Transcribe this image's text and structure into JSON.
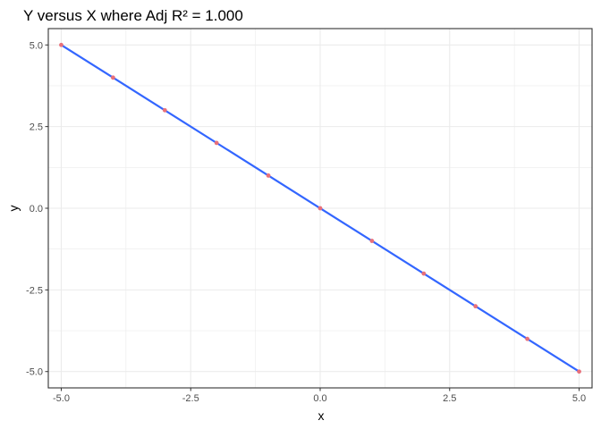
{
  "chart_data": {
    "type": "scatter",
    "title": "Y versus X where Adj R² = 1.000",
    "xlabel": "x",
    "ylabel": "y",
    "xlim": [
      -5.25,
      5.25
    ],
    "ylim": [
      -5.5,
      5.5
    ],
    "x_ticks": [
      -5.0,
      -2.5,
      0.0,
      2.5,
      5.0
    ],
    "x_tick_labels": [
      "-5.0",
      "-2.5",
      "0.0",
      "2.5",
      "5.0"
    ],
    "y_ticks": [
      -5.0,
      -2.5,
      0.0,
      2.5,
      5.0
    ],
    "y_tick_labels": [
      "-5.0",
      "-2.5",
      "0.0",
      "2.5",
      "5.0"
    ],
    "grid": true,
    "points": {
      "x": [
        -5,
        -4,
        -3,
        -2,
        -1,
        0,
        1,
        2,
        3,
        4,
        5
      ],
      "y": [
        5,
        4,
        3,
        2,
        1,
        0,
        -1,
        -2,
        -3,
        -4,
        -5
      ]
    },
    "fit_line": {
      "x": [
        -5,
        5
      ],
      "y": [
        5,
        -5
      ]
    },
    "colors": {
      "point": "#e8707a",
      "line": "#3366ff",
      "grid": "#ebebeb",
      "panel_border": "#333333",
      "tick_text": "#4d4d4d"
    }
  }
}
